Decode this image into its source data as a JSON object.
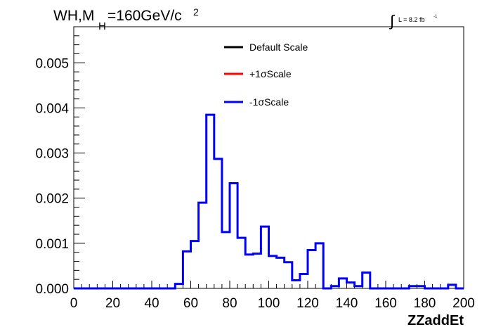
{
  "chart_data": {
    "type": "line",
    "title": {
      "prefix": "WH,M",
      "sub": "H",
      "main": "=160GeV/c",
      "sup": "2"
    },
    "lumi": {
      "integral": "∫",
      "text": "L = 8.2 fb",
      "sup": "-1"
    },
    "xlabel": "ZZaddEt",
    "ylabel": "",
    "xlim": [
      0,
      200
    ],
    "ylim": [
      0,
      0.0058
    ],
    "x_ticks": [
      "0",
      "20",
      "40",
      "60",
      "80",
      "100",
      "120",
      "140",
      "160",
      "180",
      "200"
    ],
    "y_ticks": [
      "0.000",
      "0.001",
      "0.002",
      "0.003",
      "0.004",
      "0.005"
    ],
    "bin_width": 4,
    "bin_edges_start": 0,
    "series": [
      {
        "name": "Default Scale",
        "color": "#000000",
        "drawn": false,
        "values": [
          0,
          0,
          0,
          0,
          0,
          0,
          0,
          0,
          0,
          0,
          0,
          0,
          0,
          0.0001,
          0.00082,
          0.00105,
          0.0019,
          0.00385,
          0.00287,
          0.00125,
          0.00233,
          0.00112,
          0.00075,
          0.00077,
          0.00137,
          0.00072,
          0.00068,
          0.00058,
          0.00018,
          0.00032,
          0.00085,
          0.001,
          0,
          5e-05,
          0.00022,
          0.00013,
          5e-05,
          0.00035,
          0,
          0,
          0,
          0,
          0,
          5e-05,
          5e-05,
          0,
          0,
          0,
          8e-05,
          0
        ]
      },
      {
        "name": "+1σScale",
        "color": "#ff0000",
        "drawn": false,
        "values": [
          0,
          0,
          0,
          0,
          0,
          0,
          0,
          0,
          0,
          0,
          0,
          0,
          0,
          0.0001,
          0.00082,
          0.00105,
          0.0019,
          0.00385,
          0.00287,
          0.00125,
          0.00233,
          0.00112,
          0.00075,
          0.00077,
          0.00137,
          0.00072,
          0.00068,
          0.00058,
          0.00018,
          0.00032,
          0.00085,
          0.001,
          0,
          5e-05,
          0.00022,
          0.00013,
          5e-05,
          0.00035,
          0,
          0,
          0,
          0,
          0,
          5e-05,
          5e-05,
          0,
          0,
          0,
          8e-05,
          0
        ]
      },
      {
        "name": "-1σScale",
        "color": "#0000ff",
        "drawn": true,
        "values": [
          0,
          0,
          0,
          0,
          0,
          0,
          0,
          0,
          0,
          0,
          0,
          0,
          0,
          0.0001,
          0.00082,
          0.00105,
          0.0019,
          0.00385,
          0.00287,
          0.00125,
          0.00233,
          0.00112,
          0.00075,
          0.00077,
          0.00137,
          0.00072,
          0.00068,
          0.00058,
          0.00018,
          0.00032,
          0.00085,
          0.001,
          0,
          5e-05,
          0.00022,
          0.00013,
          5e-05,
          0.00035,
          0,
          0,
          0,
          0,
          0,
          5e-05,
          5e-05,
          0,
          0,
          0,
          8e-05,
          0
        ]
      }
    ],
    "legend": [
      {
        "label": "Default Scale",
        "color": "#000000"
      },
      {
        "label": "+1σScale",
        "color": "#ff0000"
      },
      {
        "label": "-1σScale",
        "color": "#0000ff"
      }
    ],
    "legend_position": "top-center",
    "grid": false
  }
}
